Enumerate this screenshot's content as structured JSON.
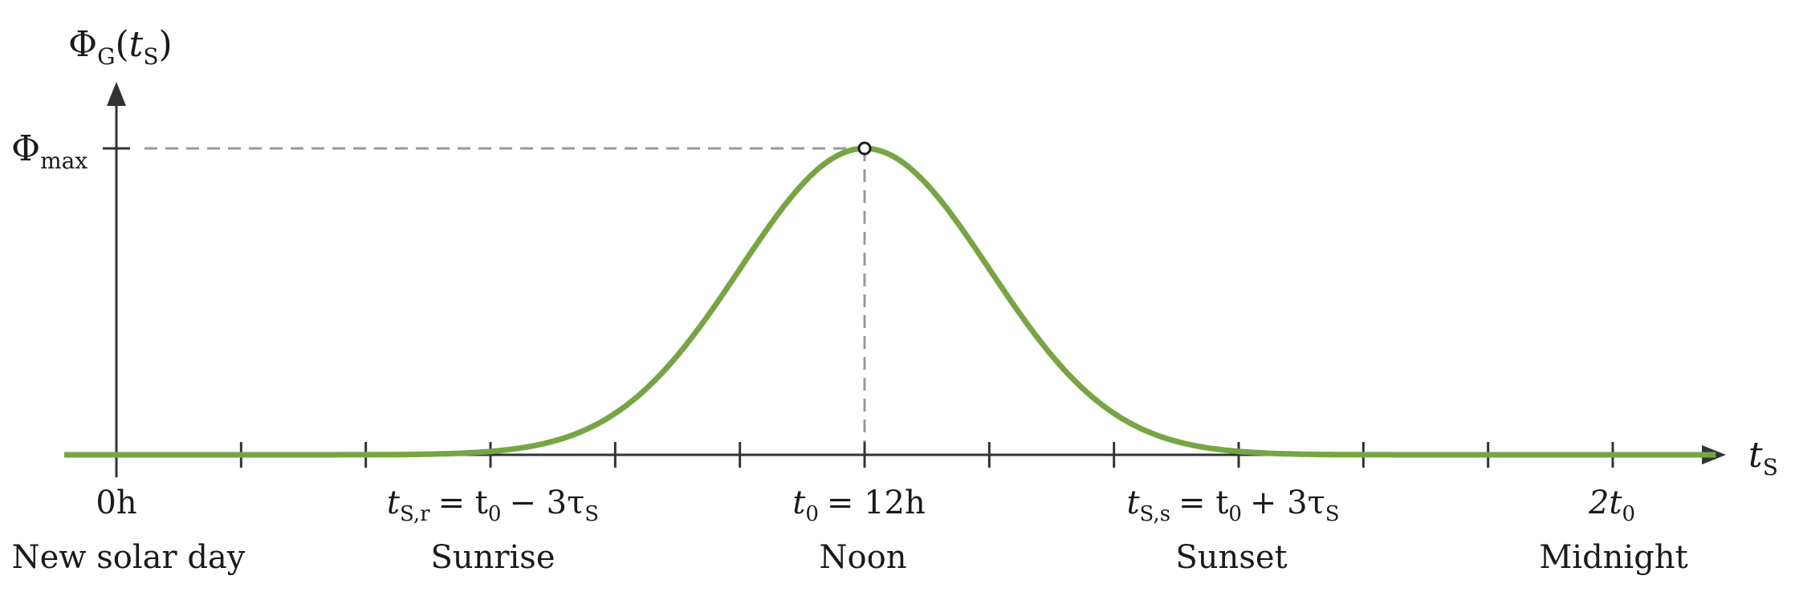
{
  "colors": {
    "curve": "#77a544",
    "axis": "#333333",
    "guide": "#999999",
    "text": "#1a1a1a"
  },
  "chart_data": {
    "type": "line",
    "title": "",
    "y_axis_label": {
      "main": "Φ",
      "sub": "G",
      "open": "(",
      "var": "t",
      "var_sub": "S",
      "close": ")"
    },
    "x_axis_label": {
      "main": "t",
      "sub": "S"
    },
    "y_max_label": {
      "main": "Φ",
      "sub": "max"
    },
    "xlim": [
      0,
      26
    ],
    "ylim": [
      0,
      1
    ],
    "tick_positions": [
      0,
      2,
      4,
      6,
      8,
      10,
      12,
      14,
      16,
      18,
      20,
      22,
      24
    ],
    "series": [
      {
        "x": [
          -1,
          0,
          2,
          4,
          5,
          6,
          7,
          8,
          9,
          10,
          11,
          12,
          13,
          14,
          15,
          16,
          17,
          18,
          19,
          20,
          22,
          24,
          26
        ],
        "y": [
          0,
          0,
          0,
          0.002,
          0.006,
          0.015,
          0.044,
          0.12,
          0.29,
          0.55,
          0.84,
          1.0,
          0.84,
          0.55,
          0.29,
          0.12,
          0.044,
          0.015,
          0.006,
          0.002,
          0,
          0,
          0
        ]
      }
    ],
    "peak": {
      "x": 12,
      "y": 1
    },
    "tick_labels": {
      "zero": "0h",
      "sunrise": {
        "t": "t",
        "sub": "S,r",
        "rhs": "= t",
        "rhs_sub": "0",
        "tail": "− 3τ",
        "tail_sub": "S"
      },
      "noon": {
        "t": "t",
        "sub": "0",
        "rhs": "= 12h"
      },
      "sunset": {
        "t": "t",
        "sub": "S,s",
        "rhs": "= t",
        "rhs_sub": "0",
        "tail": "+ 3τ",
        "tail_sub": "S"
      },
      "midnight": {
        "lead": "2t",
        "sub": "0"
      }
    },
    "event_labels": {
      "new_day": "New solar day",
      "sunrise": "Sunrise",
      "noon": "Noon",
      "sunset": "Sunset",
      "midnight": "Midnight"
    }
  }
}
